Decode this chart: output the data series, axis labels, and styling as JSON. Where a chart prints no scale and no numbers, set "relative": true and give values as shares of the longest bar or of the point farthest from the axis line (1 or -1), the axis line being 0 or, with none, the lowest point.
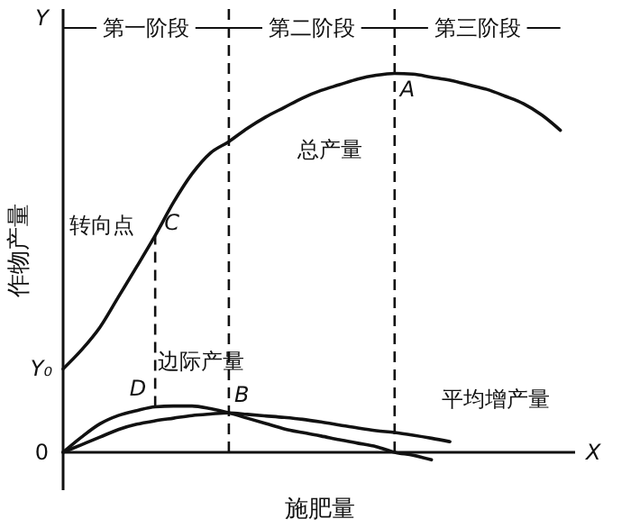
{
  "chart_data": {
    "type": "line",
    "relative": true,
    "xlabel": "施肥量",
    "ylabel": "作物产量",
    "categories": [
      null,
      null,
      null,
      null,
      null,
      null,
      null,
      null,
      null,
      null,
      null,
      null,
      null,
      null,
      null,
      null,
      null,
      null,
      null,
      null,
      null,
      null,
      null,
      null,
      null,
      null,
      null,
      null
    ],
    "series": [
      {
        "color": "#111111",
        "values": [
          0.22,
          0.27,
          0.33,
          0.41,
          0.49,
          0.572,
          0.66,
          0.735,
          0.79,
          0.82,
          0.855,
          0.885,
          0.91,
          0.935,
          0.955,
          0.97,
          0.985,
          0.995,
          1.0,
          0.998,
          0.99,
          0.982,
          0.97,
          0.958,
          0.94,
          0.92,
          0.89,
          0.85
        ]
      },
      {
        "color": "#111111",
        "values": [
          0,
          0.04,
          0.075,
          0.097,
          0.11,
          0.12,
          0.122,
          0.122,
          0.115,
          0.104,
          0.09,
          0.076,
          0.062,
          0.052,
          0.043,
          0.033,
          0.024,
          0.015,
          0,
          -0.008,
          -0.02,
          null,
          null,
          null,
          null,
          null,
          null,
          null
        ]
      },
      {
        "color": "#111111",
        "values": [
          0,
          0.02,
          0.04,
          0.06,
          0.074,
          0.083,
          0.09,
          0.097,
          0.101,
          0.104,
          0.1,
          0.096,
          0.092,
          0.087,
          0.08,
          0.072,
          0.064,
          0.057,
          0.052,
          0.045,
          0.037,
          0.028,
          null,
          null,
          null,
          null,
          null,
          null
        ]
      }
    ],
    "annotations": [
      "Y",
      "X",
      "0",
      "Y₀",
      "A",
      "总产量",
      "转向点",
      "C",
      "D",
      "B",
      "边际产量",
      "平均增产量",
      "第一阶段",
      "第二阶段",
      "第三阶段"
    ]
  }
}
